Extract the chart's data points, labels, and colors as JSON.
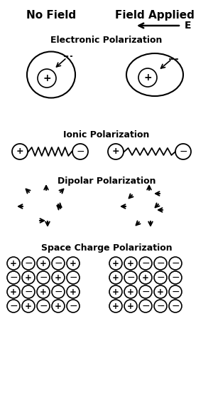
{
  "title_left": "No Field",
  "title_right": "Field Applied",
  "field_label": "E",
  "section_labels": [
    "Electronic Polarization",
    "Ionic Polarization",
    "Dipolar Polarization",
    "Space Charge Polarization"
  ],
  "bg_color": "#ffffff",
  "text_color": "#000000",
  "left_pattern": [
    [
      "+",
      "-",
      "+",
      "-",
      "+"
    ],
    [
      "-",
      "+",
      "-",
      "+",
      "-"
    ],
    [
      "+",
      "-",
      "+",
      "-",
      "+"
    ],
    [
      "-",
      "+",
      "-",
      "+",
      "-"
    ]
  ],
  "right_pattern": [
    [
      "+",
      "+",
      "-",
      "-",
      "-"
    ],
    [
      "+",
      "-",
      "+",
      "-",
      "-"
    ],
    [
      "+",
      "+",
      "-",
      "+",
      "-"
    ],
    [
      "+",
      "+",
      "-",
      "-",
      "-"
    ]
  ]
}
